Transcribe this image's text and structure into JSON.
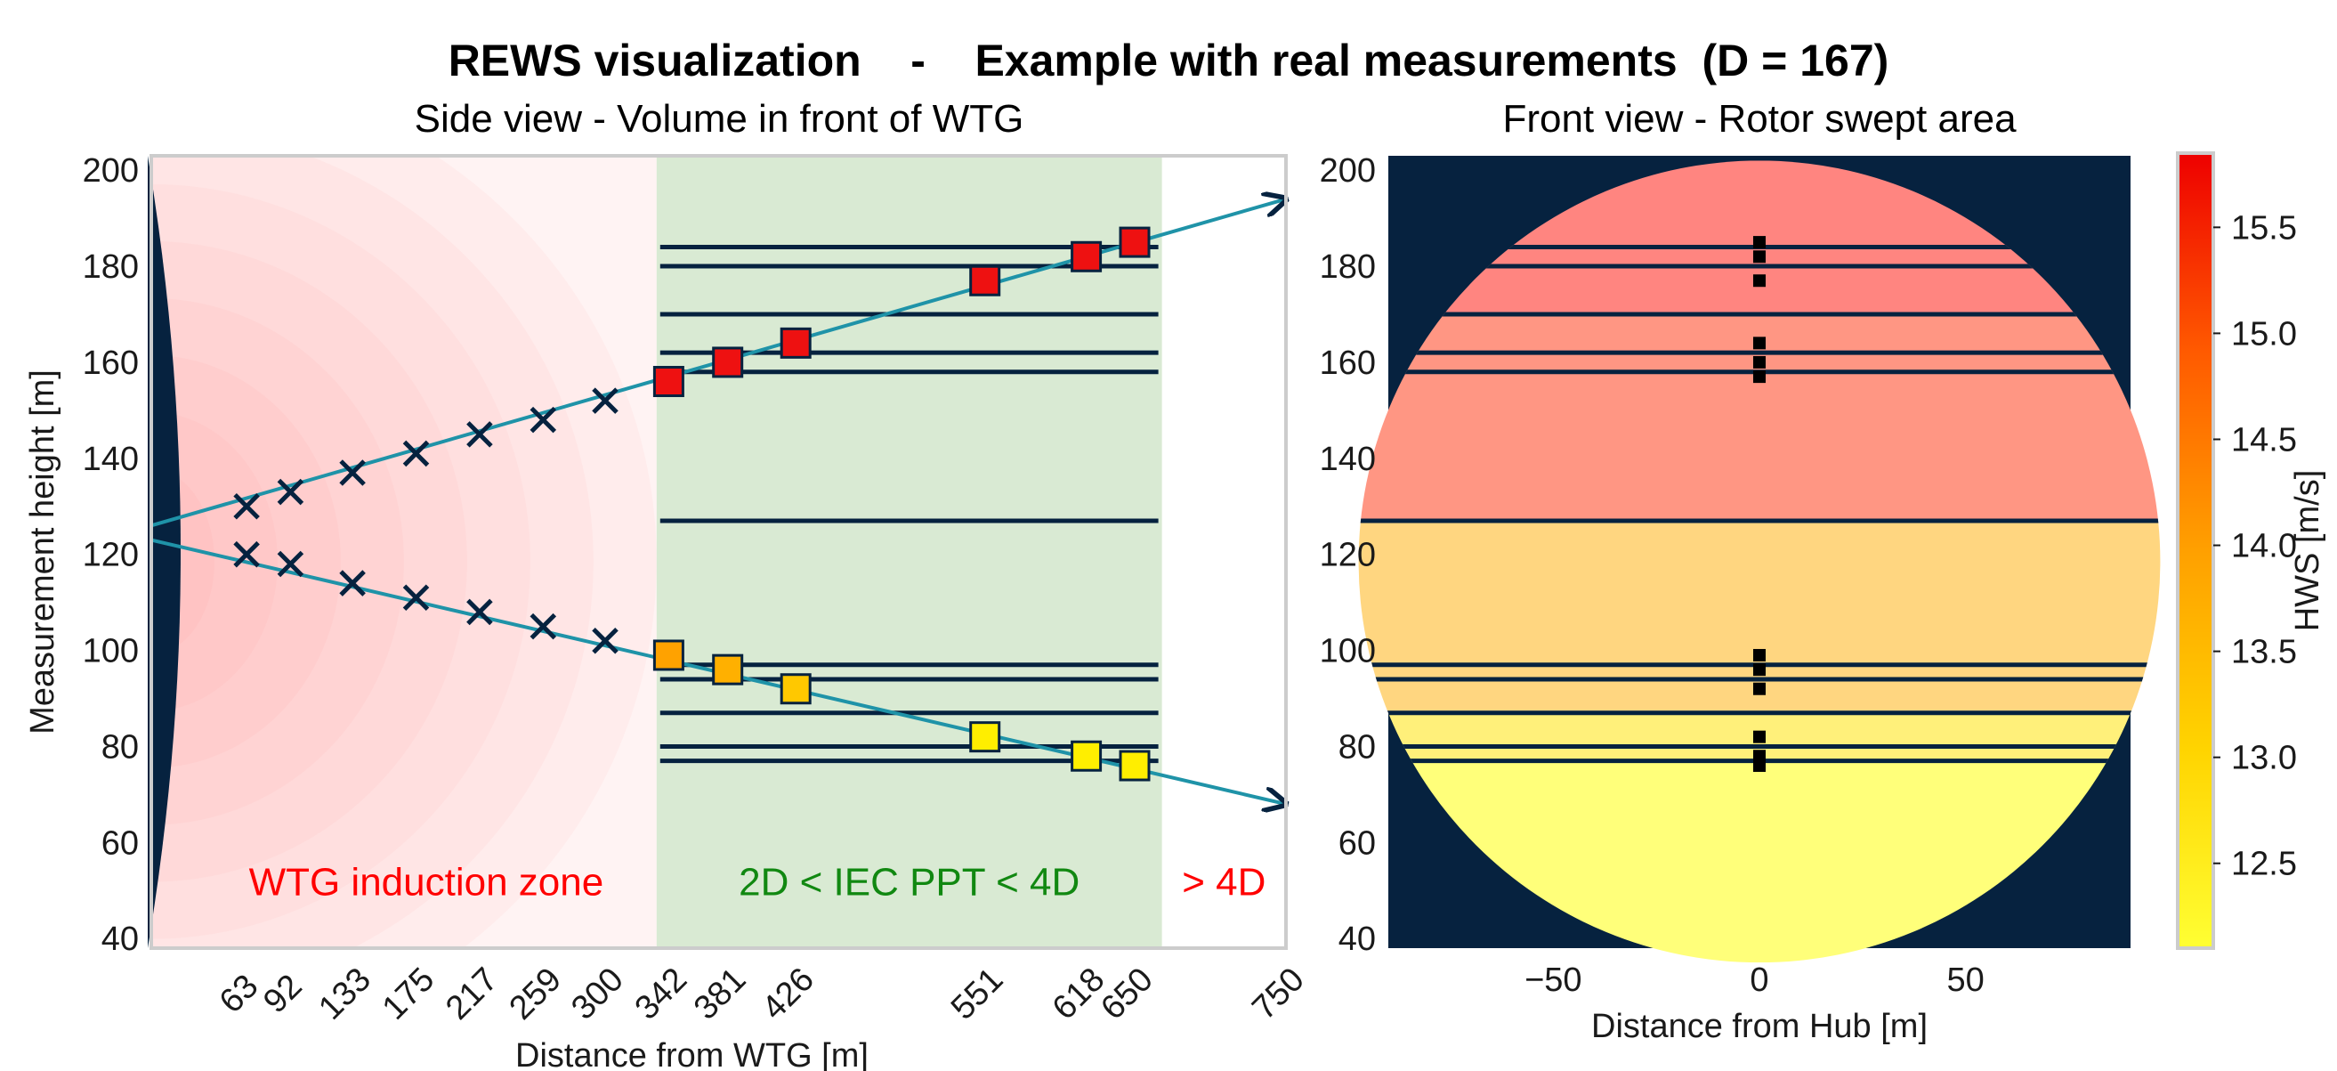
{
  "title": "REWS visualization    -    Example with real measurements  (D = 167)",
  "colors": {
    "navy": "#06223f",
    "teal": "#1f93a8",
    "green_zone": "#d9ead3",
    "induction_text": "#ff0000",
    "iec_text": "#118811",
    "beyond_text": "#ff0000"
  },
  "chart_data": [
    {
      "type": "scatter",
      "title": "Side view - Volume in front of WTG",
      "xlabel": "Distance from WTG  [m]",
      "ylabel": "Measurement height [m]",
      "xlim": [
        0,
        750
      ],
      "ylim": [
        38,
        203
      ],
      "grid": false,
      "x_ticks": [
        63,
        92,
        133,
        175,
        217,
        259,
        300,
        342,
        381,
        426,
        551,
        618,
        650,
        750
      ],
      "y_ticks": [
        40,
        60,
        80,
        100,
        120,
        140,
        160,
        180,
        200
      ],
      "zones": [
        {
          "label": "WTG induction zone",
          "x": [
            0,
            334
          ],
          "color": "#ff0000"
        },
        {
          "label": "2D < IEC PPT < 4D",
          "x": [
            334,
            668
          ],
          "color": "#118811"
        },
        {
          "label": "> 4D",
          "x": [
            668,
            750
          ],
          "color": "#ff0000"
        }
      ],
      "beams": [
        {
          "from": [
            0,
            126
          ],
          "to": [
            750,
            194
          ]
        },
        {
          "from": [
            0,
            123
          ],
          "to": [
            750,
            68
          ]
        }
      ],
      "measurement_levels": [
        184,
        180,
        170,
        162,
        158,
        127,
        97,
        94,
        87,
        80,
        77
      ],
      "series": [
        {
          "marker": "x",
          "points": [
            {
              "x": 63,
              "y": 130
            },
            {
              "x": 92,
              "y": 133
            },
            {
              "x": 133,
              "y": 137
            },
            {
              "x": 175,
              "y": 141
            },
            {
              "x": 217,
              "y": 145
            },
            {
              "x": 259,
              "y": 148
            },
            {
              "x": 300,
              "y": 152
            }
          ]
        },
        {
          "marker": "x",
          "points": [
            {
              "x": 63,
              "y": 120
            },
            {
              "x": 92,
              "y": 118
            },
            {
              "x": 133,
              "y": 114
            },
            {
              "x": 175,
              "y": 111
            },
            {
              "x": 217,
              "y": 108
            },
            {
              "x": 259,
              "y": 105
            },
            {
              "x": 300,
              "y": 102
            }
          ]
        },
        {
          "marker": "square",
          "points": [
            {
              "x": 342,
              "y": 156,
              "color": "#ee1111"
            },
            {
              "x": 381,
              "y": 160,
              "color": "#ee1111"
            },
            {
              "x": 426,
              "y": 164,
              "color": "#ee1111"
            },
            {
              "x": 551,
              "y": 177,
              "color": "#ee1111"
            },
            {
              "x": 618,
              "y": 182,
              "color": "#ee1111"
            },
            {
              "x": 650,
              "y": 185,
              "color": "#ee1111"
            }
          ]
        },
        {
          "marker": "square",
          "points": [
            {
              "x": 342,
              "y": 99,
              "color": "#ffa200"
            },
            {
              "x": 381,
              "y": 96,
              "color": "#ffb000"
            },
            {
              "x": 426,
              "y": 92,
              "color": "#ffc800"
            },
            {
              "x": 551,
              "y": 82,
              "color": "#ffee00"
            },
            {
              "x": 618,
              "y": 78,
              "color": "#ffee00"
            },
            {
              "x": 650,
              "y": 76,
              "color": "#ffee00"
            }
          ]
        }
      ]
    },
    {
      "type": "heatmap",
      "title": "Front view - Rotor swept area",
      "xlabel": "Distance from Hub  [m]",
      "xlim": [
        -90,
        90
      ],
      "ylim": [
        38,
        203
      ],
      "x_ticks": [
        -50,
        0,
        50
      ],
      "y_ticks": [
        40,
        60,
        80,
        100,
        120,
        140,
        160,
        180,
        200
      ],
      "hub_height": 118.5,
      "rotor_radius": 83.5,
      "bands": [
        {
          "y": [
            170,
            202
          ],
          "color": "#ff8580"
        },
        {
          "y": [
            127,
            170
          ],
          "color": "#ff9683"
        },
        {
          "y": [
            87,
            127
          ],
          "color": "#ffd680"
        },
        {
          "y": [
            77,
            87
          ],
          "color": "#fff07a"
        },
        {
          "y": [
            35,
            77
          ],
          "color": "#ffff7a"
        }
      ],
      "measurement_levels": [
        184,
        180,
        170,
        162,
        158,
        127,
        97,
        94,
        87,
        80,
        77
      ],
      "hub_markers": [
        185,
        182,
        177,
        164,
        160,
        157,
        99,
        96,
        92,
        82,
        78,
        76
      ]
    }
  ],
  "colorbar": {
    "label": "HWS [m/s]",
    "range": [
      12.1,
      15.85
    ],
    "ticks": [
      "12.5",
      "13.0",
      "13.5",
      "14.0",
      "14.5",
      "15.0",
      "15.5"
    ]
  }
}
